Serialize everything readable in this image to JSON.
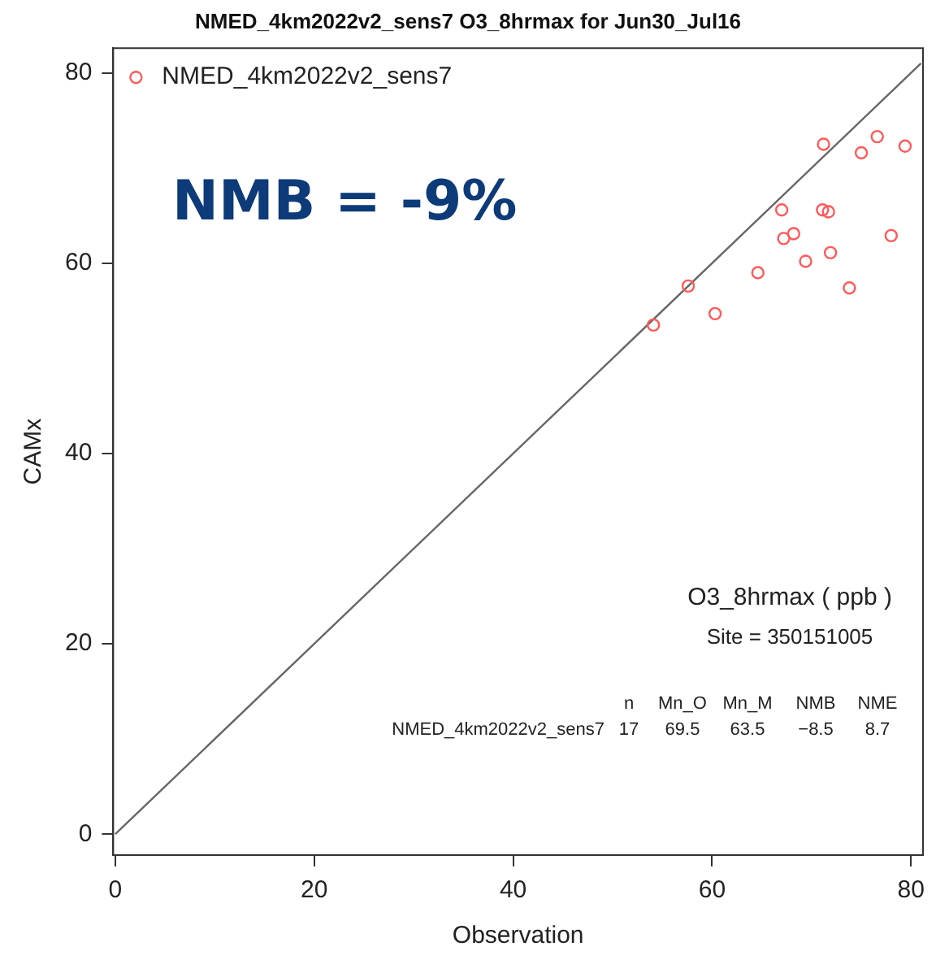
{
  "chart_data": {
    "type": "scatter",
    "title": "NMED_4km2022v2_sens7 O3_8hrmax for Jun30_Jul16",
    "xlabel": "Observation",
    "ylabel": "CAMx",
    "xlim": [
      -0.2,
      81.2
    ],
    "ylim": [
      -2.2,
      82.6
    ],
    "xticks": [
      0,
      20,
      40,
      60,
      80
    ],
    "yticks": [
      0,
      20,
      40,
      60,
      80
    ],
    "grid": false,
    "legend": "top left",
    "marker": "circle",
    "series": [
      {
        "name": "NMED_4km2022v2_sens7",
        "color": "#ff5a5a",
        "x": [
          71.2,
          76.6,
          75.0,
          79.4,
          67.0,
          71.1,
          71.7,
          68.2,
          67.2,
          78.0,
          71.9,
          69.4,
          64.6,
          73.8,
          57.6,
          60.3,
          54.1
        ],
        "values": [
          72.5,
          73.3,
          71.6,
          72.3,
          65.6,
          65.6,
          65.4,
          63.1,
          62.6,
          62.9,
          61.1,
          60.2,
          59.0,
          57.4,
          57.6,
          54.7,
          53.5
        ]
      },
      {
        "type": "line",
        "color": "#666666",
        "marker": "none",
        "x": [
          0,
          81
        ],
        "values": [
          0,
          81
        ]
      }
    ],
    "annotations": [
      "NMB = -9%",
      "O3_8hrmax ( ppb )",
      "Site = 350151005",
      "n",
      "Mn_O",
      "Mn_M",
      "NMB",
      "NME",
      "NMED_4km2022v2_sens7",
      "17",
      "69.5",
      "63.5",
      "−8.5",
      "8.7"
    ]
  }
}
